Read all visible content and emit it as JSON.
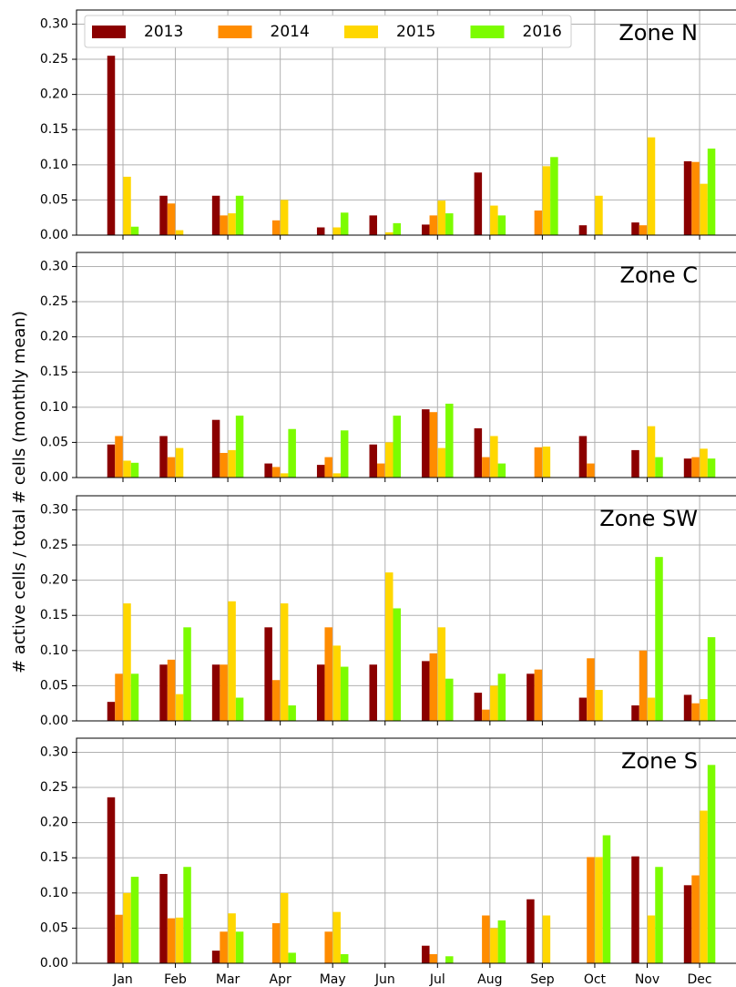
{
  "ylabel": "# active cells / total # cells (monthly mean)",
  "categories": [
    "Jan",
    "Feb",
    "Mar",
    "Apr",
    "May",
    "Jun",
    "Jul",
    "Aug",
    "Sep",
    "Oct",
    "Nov",
    "Dec"
  ],
  "chart_data": [
    {
      "type": "bar",
      "title": "Zone N",
      "legend": "upper left",
      "grid": true,
      "ylim": [
        0,
        0.32
      ],
      "yticks": [
        {
          "value": 0,
          "label": "0.00"
        },
        {
          "value": 0.05,
          "label": "0.05"
        },
        {
          "value": 0.1,
          "label": "0.10"
        },
        {
          "value": 0.15,
          "label": "0.15"
        },
        {
          "value": 0.2,
          "label": "0.20"
        },
        {
          "value": 0.25,
          "label": "0.25"
        },
        {
          "value": 0.3,
          "label": "0.30"
        }
      ],
      "series": [
        {
          "name": "2013",
          "color": "#8b0000",
          "values": [
            0.255,
            0.056,
            0.056,
            0,
            0.011,
            0.028,
            0.015,
            0.089,
            0,
            0.014,
            0.018,
            0.105
          ]
        },
        {
          "name": "2014",
          "color": "#ff8c00",
          "values": [
            0,
            0.045,
            0.028,
            0.021,
            0,
            0,
            0.028,
            0,
            0.035,
            0,
            0.014,
            0.104
          ]
        },
        {
          "name": "2015",
          "color": "#ffd700",
          "values": [
            0.083,
            0.007,
            0.031,
            0.05,
            0.011,
            0.004,
            0.049,
            0.042,
            0.098,
            0.056,
            0.139,
            0.073
          ]
        },
        {
          "name": "2016",
          "color": "#7cfc00",
          "values": [
            0.012,
            0,
            0.056,
            0,
            0.032,
            0.017,
            0.031,
            0.028,
            0.111,
            0,
            0,
            0.123
          ]
        }
      ]
    },
    {
      "type": "bar",
      "title": "Zone C",
      "grid": true,
      "ylim": [
        0,
        0.32
      ],
      "yticks": [
        {
          "value": 0,
          "label": "0.00"
        },
        {
          "value": 0.05,
          "label": "0.05"
        },
        {
          "value": 0.1,
          "label": "0.10"
        },
        {
          "value": 0.15,
          "label": "0.15"
        },
        {
          "value": 0.2,
          "label": "0.20"
        },
        {
          "value": 0.25,
          "label": "0.25"
        },
        {
          "value": 0.3,
          "label": "0.30"
        }
      ],
      "series": [
        {
          "color": "#8b0000",
          "values": [
            0.047,
            0.059,
            0.082,
            0.02,
            0.018,
            0.047,
            0.097,
            0.07,
            0,
            0.059,
            0.039,
            0.027
          ]
        },
        {
          "color": "#ff8c00",
          "values": [
            0.059,
            0.029,
            0.035,
            0.015,
            0.029,
            0.02,
            0.093,
            0.029,
            0.043,
            0.02,
            0,
            0.029
          ]
        },
        {
          "color": "#ffd700",
          "values": [
            0.024,
            0.042,
            0.039,
            0.006,
            0.006,
            0.05,
            0.042,
            0.059,
            0.044,
            0,
            0.073,
            0.041
          ]
        },
        {
          "color": "#7cfc00",
          "values": [
            0.021,
            0,
            0.088,
            0.069,
            0.067,
            0.088,
            0.105,
            0.02,
            0,
            0,
            0.029,
            0.027
          ]
        }
      ]
    },
    {
      "type": "bar",
      "title": "Zone SW",
      "grid": true,
      "ylim": [
        0,
        0.32
      ],
      "yticks": [
        {
          "value": 0,
          "label": "0.00"
        },
        {
          "value": 0.05,
          "label": "0.05"
        },
        {
          "value": 0.1,
          "label": "0.10"
        },
        {
          "value": 0.15,
          "label": "0.15"
        },
        {
          "value": 0.2,
          "label": "0.20"
        },
        {
          "value": 0.25,
          "label": "0.25"
        },
        {
          "value": 0.3,
          "label": "0.30"
        }
      ],
      "series": [
        {
          "color": "#8b0000",
          "values": [
            0.027,
            0.08,
            0.08,
            0.133,
            0.08,
            0.08,
            0.085,
            0.04,
            0.067,
            0.033,
            0.022,
            0.037
          ]
        },
        {
          "color": "#ff8c00",
          "values": [
            0.067,
            0.087,
            0.08,
            0.058,
            0.133,
            0,
            0.096,
            0.016,
            0.073,
            0.089,
            0.1,
            0.025
          ]
        },
        {
          "color": "#ffd700",
          "values": [
            0.167,
            0.038,
            0.17,
            0.167,
            0.107,
            0.211,
            0.133,
            0.05,
            0,
            0.044,
            0.033,
            0.031
          ]
        },
        {
          "color": "#7cfc00",
          "values": [
            0.067,
            0.133,
            0.033,
            0.022,
            0.077,
            0.16,
            0.06,
            0.067,
            0,
            0,
            0.233,
            0.119
          ]
        }
      ]
    },
    {
      "type": "bar",
      "title": "Zone S",
      "grid": true,
      "ylim": [
        0,
        0.32
      ],
      "show_categories": true,
      "yticks": [
        {
          "value": 0,
          "label": "0.00"
        },
        {
          "value": 0.05,
          "label": "0.05"
        },
        {
          "value": 0.1,
          "label": "0.10"
        },
        {
          "value": 0.15,
          "label": "0.15"
        },
        {
          "value": 0.2,
          "label": "0.20"
        },
        {
          "value": 0.25,
          "label": "0.25"
        },
        {
          "value": 0.3,
          "label": "0.30"
        }
      ],
      "series": [
        {
          "color": "#8b0000",
          "values": [
            0.236,
            0.127,
            0.018,
            0,
            0,
            0,
            0.025,
            0,
            0.091,
            0,
            0.152,
            0.111
          ]
        },
        {
          "color": "#ff8c00",
          "values": [
            0.069,
            0.064,
            0.045,
            0.057,
            0.045,
            0,
            0.013,
            0.068,
            0,
            0.151,
            0,
            0.125
          ]
        },
        {
          "color": "#ffd700",
          "values": [
            0.1,
            0.065,
            0.071,
            0.1,
            0.073,
            0,
            0,
            0.05,
            0.068,
            0.151,
            0.068,
            0.217
          ]
        },
        {
          "color": "#7cfc00",
          "values": [
            0.123,
            0.137,
            0.045,
            0.015,
            0.013,
            0,
            0.01,
            0.061,
            0,
            0.182,
            0.137,
            0.282
          ]
        }
      ]
    }
  ]
}
